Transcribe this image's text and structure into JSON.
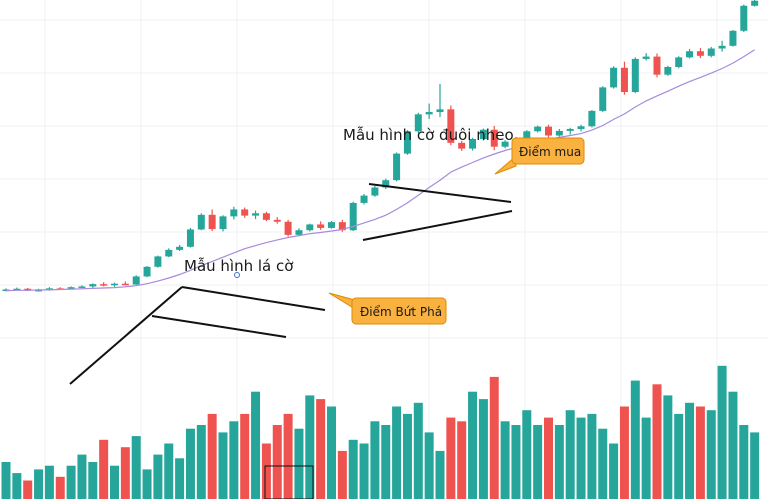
{
  "chart_data": {
    "type": "candlestick",
    "grid": true,
    "colors": {
      "up": "#26a69a",
      "down": "#ef5350",
      "ma": "#a78bdc",
      "grid": "#eef0f3",
      "trendline": "#111111",
      "callout_fill": "#f9b13f",
      "callout_border": "#e08a00"
    },
    "price_range": [
      0,
      100
    ],
    "candles": [
      [
        24.6,
        25.1,
        24.3,
        24.8
      ],
      [
        24.8,
        25.3,
        24.6,
        25.0
      ],
      [
        25.0,
        25.2,
        24.4,
        24.6
      ],
      [
        24.6,
        25.0,
        24.3,
        24.7
      ],
      [
        24.7,
        25.4,
        24.5,
        25.1
      ],
      [
        25.1,
        25.4,
        24.8,
        25.0
      ],
      [
        25.0,
        25.6,
        24.8,
        25.4
      ],
      [
        25.4,
        25.9,
        25.1,
        25.6
      ],
      [
        25.6,
        26.4,
        25.2,
        26.2
      ],
      [
        26.2,
        26.7,
        25.6,
        25.9
      ],
      [
        25.9,
        26.6,
        25.5,
        26.3
      ],
      [
        26.3,
        26.9,
        25.9,
        26.1
      ],
      [
        26.1,
        28.5,
        26.0,
        28.2
      ],
      [
        28.2,
        30.9,
        28.0,
        30.7
      ],
      [
        30.7,
        33.6,
        30.5,
        33.4
      ],
      [
        33.4,
        35.5,
        33.2,
        35.1
      ],
      [
        35.1,
        36.4,
        34.8,
        35.9
      ],
      [
        35.9,
        40.8,
        35.7,
        40.4
      ],
      [
        40.4,
        44.6,
        40.2,
        44.2
      ],
      [
        44.2,
        45.6,
        40.0,
        40.5
      ],
      [
        40.5,
        44.1,
        39.9,
        43.8
      ],
      [
        43.8,
        46.3,
        43.0,
        45.6
      ],
      [
        45.6,
        46.1,
        43.4,
        44.0
      ],
      [
        44.0,
        45.3,
        43.1,
        44.6
      ],
      [
        44.6,
        45.0,
        42.6,
        42.9
      ],
      [
        42.9,
        43.6,
        41.9,
        42.4
      ],
      [
        42.4,
        42.9,
        38.6,
        39.0
      ],
      [
        39.0,
        40.7,
        38.6,
        40.2
      ],
      [
        40.2,
        41.9,
        39.9,
        41.7
      ],
      [
        41.7,
        42.5,
        40.3,
        40.8
      ],
      [
        40.8,
        42.6,
        40.6,
        42.3
      ],
      [
        42.3,
        42.9,
        39.8,
        40.2
      ],
      [
        40.2,
        47.6,
        40.0,
        47.3
      ],
      [
        47.3,
        49.6,
        46.9,
        49.2
      ],
      [
        49.2,
        51.7,
        48.9,
        51.3
      ],
      [
        51.3,
        53.6,
        50.9,
        53.2
      ],
      [
        53.2,
        60.4,
        52.9,
        60.1
      ],
      [
        60.1,
        66.2,
        59.8,
        65.9
      ],
      [
        65.9,
        70.7,
        65.4,
        70.3
      ],
      [
        70.3,
        73.1,
        69.1,
        70.9
      ],
      [
        70.9,
        78.2,
        69.6,
        71.6
      ],
      [
        71.6,
        72.6,
        62.3,
        62.9
      ],
      [
        62.9,
        63.4,
        60.8,
        61.4
      ],
      [
        61.4,
        64.2,
        60.9,
        63.9
      ],
      [
        63.9,
        66.6,
        63.5,
        66.3
      ],
      [
        66.3,
        67.3,
        61.0,
        61.9
      ],
      [
        61.9,
        63.6,
        61.5,
        63.2
      ],
      [
        63.2,
        64.4,
        62.6,
        64.0
      ],
      [
        64.0,
        66.2,
        63.8,
        65.9
      ],
      [
        65.9,
        67.4,
        65.6,
        67.1
      ],
      [
        67.1,
        67.6,
        64.3,
        64.8
      ],
      [
        64.8,
        66.5,
        64.5,
        66.0
      ],
      [
        66.0,
        66.8,
        65.1,
        66.5
      ],
      [
        66.5,
        67.6,
        65.9,
        67.2
      ],
      [
        67.2,
        71.4,
        66.9,
        71.2
      ],
      [
        71.2,
        77.6,
        70.9,
        77.3
      ],
      [
        77.3,
        82.8,
        77.0,
        82.4
      ],
      [
        82.4,
        84.0,
        75.4,
        76.1
      ],
      [
        76.1,
        85.1,
        75.8,
        84.7
      ],
      [
        84.7,
        86.2,
        84.3,
        85.3
      ],
      [
        85.3,
        86.1,
        79.9,
        80.6
      ],
      [
        80.6,
        82.9,
        80.3,
        82.6
      ],
      [
        82.6,
        85.4,
        82.3,
        85.1
      ],
      [
        85.1,
        87.3,
        84.8,
        86.7
      ],
      [
        86.7,
        87.5,
        84.9,
        85.5
      ],
      [
        85.5,
        87.8,
        85.1,
        87.4
      ],
      [
        87.4,
        89.4,
        86.6,
        88.1
      ],
      [
        88.1,
        92.2,
        87.9,
        92.0
      ],
      [
        92.0,
        98.8,
        91.7,
        98.5
      ],
      [
        98.5,
        100.0,
        98.3,
        99.8
      ]
    ],
    "moving_average": [
      24.5,
      24.6,
      24.6,
      24.7,
      24.7,
      24.8,
      24.9,
      25.0,
      25.1,
      25.2,
      25.3,
      25.5,
      25.8,
      26.3,
      27.0,
      27.8,
      28.7,
      29.8,
      31.0,
      32.1,
      33.2,
      34.3,
      35.4,
      36.2,
      37.0,
      37.7,
      38.3,
      38.8,
      39.3,
      39.6,
      40.0,
      40.4,
      41.2,
      42.1,
      43.0,
      44.1,
      45.6,
      47.3,
      49.3,
      51.3,
      53.2,
      55.3,
      56.6,
      57.8,
      59.0,
      60.0,
      60.9,
      61.7,
      62.5,
      63.2,
      63.8,
      64.3,
      64.8,
      65.3,
      66.2,
      67.4,
      69.0,
      70.4,
      72.2,
      73.8,
      75.1,
      76.3,
      77.6,
      78.8,
      79.9,
      81.0,
      82.2,
      83.6,
      85.3,
      87.1
    ],
    "volume": [
      10,
      7,
      5,
      8,
      9,
      6,
      9,
      12,
      10,
      16,
      9,
      14,
      17,
      8,
      12,
      15,
      11,
      19,
      20,
      23,
      18,
      21,
      23,
      29,
      15,
      20,
      23,
      19,
      28,
      27,
      25,
      13,
      16,
      15,
      21,
      20,
      25,
      23,
      26,
      18,
      13,
      22,
      21,
      29,
      27,
      33,
      21,
      20,
      24,
      20,
      22,
      20,
      24,
      22,
      23,
      19,
      15,
      25,
      32,
      22,
      31,
      28,
      23,
      26,
      25,
      24,
      36,
      29,
      20,
      18
    ],
    "annotations": [
      {
        "id": "flag",
        "text": "Mẫu hình lá cờ"
      },
      {
        "id": "pennant",
        "text": "Mẫu hình cờ đuôi nheo"
      }
    ],
    "callouts": [
      {
        "id": "breakout",
        "text": "Điểm Bứt Phá"
      },
      {
        "id": "buy",
        "text": "Điểm mua"
      }
    ]
  }
}
